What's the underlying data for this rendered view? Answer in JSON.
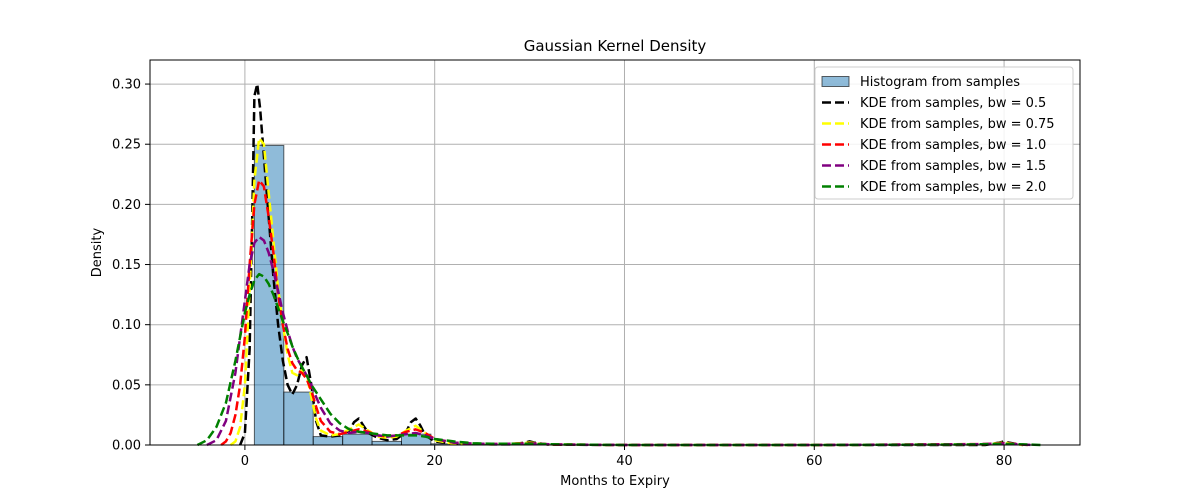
{
  "chart_data": {
    "type": "bar",
    "title": "Gaussian Kernel Density",
    "xlabel": "Months to Expiry",
    "ylabel": "Density",
    "xlim": [
      -10,
      88
    ],
    "ylim": [
      0,
      0.32
    ],
    "xticks": [
      0,
      20,
      40,
      60,
      80
    ],
    "xtick_labels": [
      "0",
      "20",
      "40",
      "60",
      "80"
    ],
    "yticks": [
      0.0,
      0.05,
      0.1,
      0.15,
      0.2,
      0.25,
      0.3
    ],
    "ytick_labels": [
      "0.00",
      "0.05",
      "0.10",
      "0.15",
      "0.20",
      "0.25",
      "0.30"
    ],
    "grid": true,
    "legend_position": "top-right",
    "histogram": {
      "name": "Histogram from samples",
      "color": "#1f77b4",
      "edges": [
        1,
        4.1,
        7.2,
        10.3,
        13.4,
        16.5,
        19.6,
        22.7,
        25.8,
        28.9,
        32.0,
        82
      ],
      "values": [
        0.249,
        0.044,
        0.007,
        0.009,
        0.003,
        0.009,
        0.001,
        0.0005,
        0.0003,
        0.0008,
        0.0002
      ]
    },
    "series": [
      {
        "name": "KDE from samples, bw = 0.5",
        "color": "#000000",
        "x": [
          -0.5,
          0,
          0.5,
          0.8,
          1.0,
          1.3,
          1.6,
          2.0,
          2.5,
          3.0,
          3.5,
          4.0,
          4.5,
          5.0,
          5.5,
          6.0,
          6.5,
          7.0,
          7.5,
          8.0,
          9.0,
          10.0,
          11.0,
          11.5,
          12.0,
          12.5,
          13.0,
          14.0,
          15.0,
          16.0,
          17.0,
          17.5,
          18.0,
          18.5,
          19.0,
          20.0,
          22.0,
          24.0,
          26.0,
          28.0,
          29.5,
          30.0,
          30.5,
          32.0,
          40.0,
          60.0,
          78.0,
          79.5,
          80.0,
          80.5,
          82.0
        ],
        "y": [
          0.0,
          0.01,
          0.08,
          0.2,
          0.29,
          0.3,
          0.28,
          0.24,
          0.19,
          0.14,
          0.1,
          0.07,
          0.05,
          0.042,
          0.05,
          0.066,
          0.073,
          0.05,
          0.02,
          0.008,
          0.007,
          0.008,
          0.012,
          0.019,
          0.022,
          0.016,
          0.01,
          0.006,
          0.004,
          0.005,
          0.011,
          0.019,
          0.022,
          0.016,
          0.008,
          0.003,
          0.001,
          0.001,
          0.0005,
          0.0005,
          0.002,
          0.003,
          0.002,
          0.0003,
          0.0,
          0.0,
          0.0,
          0.002,
          0.003,
          0.002,
          0.0
        ]
      },
      {
        "name": "KDE from samples, bw = 0.75",
        "color": "#ffff00",
        "x": [
          -1.5,
          -1.0,
          -0.5,
          0,
          0.5,
          1.0,
          1.5,
          2.0,
          2.5,
          3.0,
          3.5,
          4.0,
          4.5,
          5.0,
          5.5,
          6.0,
          6.5,
          7.0,
          7.5,
          8.0,
          9.0,
          10.0,
          11.0,
          12.0,
          13.0,
          14.0,
          15.0,
          16.0,
          17.0,
          18.0,
          19.0,
          20.0,
          22.0,
          24.0,
          26.0,
          28.0,
          30.0,
          32.0,
          40.0,
          60.0,
          78.0,
          80.0,
          82.0
        ],
        "y": [
          0.0,
          0.003,
          0.015,
          0.05,
          0.13,
          0.22,
          0.255,
          0.25,
          0.21,
          0.17,
          0.13,
          0.1,
          0.075,
          0.06,
          0.058,
          0.062,
          0.058,
          0.04,
          0.022,
          0.012,
          0.008,
          0.009,
          0.013,
          0.017,
          0.012,
          0.007,
          0.006,
          0.007,
          0.012,
          0.016,
          0.01,
          0.004,
          0.001,
          0.001,
          0.0005,
          0.001,
          0.002,
          0.0005,
          0.0,
          0.0,
          0.0005,
          0.002,
          0.0
        ]
      },
      {
        "name": "KDE from samples, bw = 1.0",
        "color": "#ff0000",
        "x": [
          -2.5,
          -2.0,
          -1.5,
          -1.0,
          -0.5,
          0,
          0.5,
          1.0,
          1.5,
          2.0,
          2.5,
          3.0,
          3.5,
          4.0,
          4.5,
          5.0,
          5.5,
          6.0,
          6.5,
          7.0,
          7.5,
          8.0,
          9.0,
          10.0,
          11.0,
          12.0,
          13.0,
          14.0,
          15.0,
          16.0,
          17.0,
          18.0,
          19.0,
          20.0,
          22.0,
          24.0,
          26.0,
          28.0,
          30.0,
          32.0,
          40.0,
          60.0,
          78.0,
          80.0,
          82.5
        ],
        "y": [
          0.0,
          0.003,
          0.01,
          0.025,
          0.05,
          0.09,
          0.15,
          0.2,
          0.22,
          0.215,
          0.19,
          0.16,
          0.125,
          0.1,
          0.08,
          0.068,
          0.062,
          0.06,
          0.055,
          0.045,
          0.032,
          0.02,
          0.011,
          0.009,
          0.011,
          0.013,
          0.011,
          0.008,
          0.007,
          0.008,
          0.011,
          0.013,
          0.01,
          0.005,
          0.002,
          0.001,
          0.0008,
          0.001,
          0.0015,
          0.0005,
          0.0,
          0.0,
          0.0008,
          0.0015,
          0.0
        ]
      },
      {
        "name": "KDE from samples, bw = 1.5",
        "color": "#800080",
        "x": [
          -4.0,
          -3.0,
          -2.0,
          -1.0,
          0,
          0.5,
          1.0,
          1.5,
          2.0,
          2.5,
          3.0,
          3.5,
          4.0,
          4.5,
          5.0,
          5.5,
          6.0,
          6.5,
          7.0,
          7.5,
          8.0,
          9.0,
          10.0,
          11.0,
          12.0,
          13.0,
          14.0,
          15.0,
          16.0,
          17.0,
          18.0,
          19.0,
          20.0,
          22.0,
          24.0,
          26.0,
          28.0,
          30.0,
          33.0,
          40.0,
          60.0,
          77.0,
          80.0,
          83.0
        ],
        "y": [
          0.0,
          0.004,
          0.02,
          0.06,
          0.12,
          0.15,
          0.168,
          0.173,
          0.17,
          0.16,
          0.145,
          0.128,
          0.11,
          0.095,
          0.082,
          0.072,
          0.065,
          0.058,
          0.05,
          0.04,
          0.031,
          0.018,
          0.012,
          0.01,
          0.011,
          0.01,
          0.008,
          0.007,
          0.008,
          0.009,
          0.01,
          0.008,
          0.005,
          0.002,
          0.0012,
          0.0008,
          0.001,
          0.0012,
          0.0004,
          0.0,
          0.0,
          0.0006,
          0.0012,
          0.0
        ]
      },
      {
        "name": "KDE from samples, bw = 2.0",
        "color": "#008000",
        "x": [
          -5.0,
          -4.0,
          -3.0,
          -2.0,
          -1.0,
          0,
          0.5,
          1.0,
          1.5,
          2.0,
          2.5,
          3.0,
          3.5,
          4.0,
          4.5,
          5.0,
          5.5,
          6.0,
          6.5,
          7.0,
          8.0,
          9.0,
          10.0,
          11.0,
          12.0,
          13.0,
          14.0,
          15.0,
          16.0,
          17.0,
          18.0,
          19.0,
          20.0,
          22.0,
          24.0,
          26.0,
          28.0,
          30.0,
          34.0,
          40.0,
          60.0,
          76.0,
          80.0,
          84.0
        ],
        "y": [
          0.0,
          0.004,
          0.015,
          0.035,
          0.07,
          0.11,
          0.125,
          0.137,
          0.142,
          0.14,
          0.134,
          0.125,
          0.114,
          0.103,
          0.093,
          0.082,
          0.073,
          0.065,
          0.058,
          0.05,
          0.038,
          0.026,
          0.018,
          0.013,
          0.011,
          0.01,
          0.009,
          0.008,
          0.008,
          0.008,
          0.008,
          0.007,
          0.005,
          0.003,
          0.0015,
          0.001,
          0.001,
          0.001,
          0.0004,
          0.0,
          0.0,
          0.0004,
          0.001,
          0.0
        ]
      }
    ]
  }
}
